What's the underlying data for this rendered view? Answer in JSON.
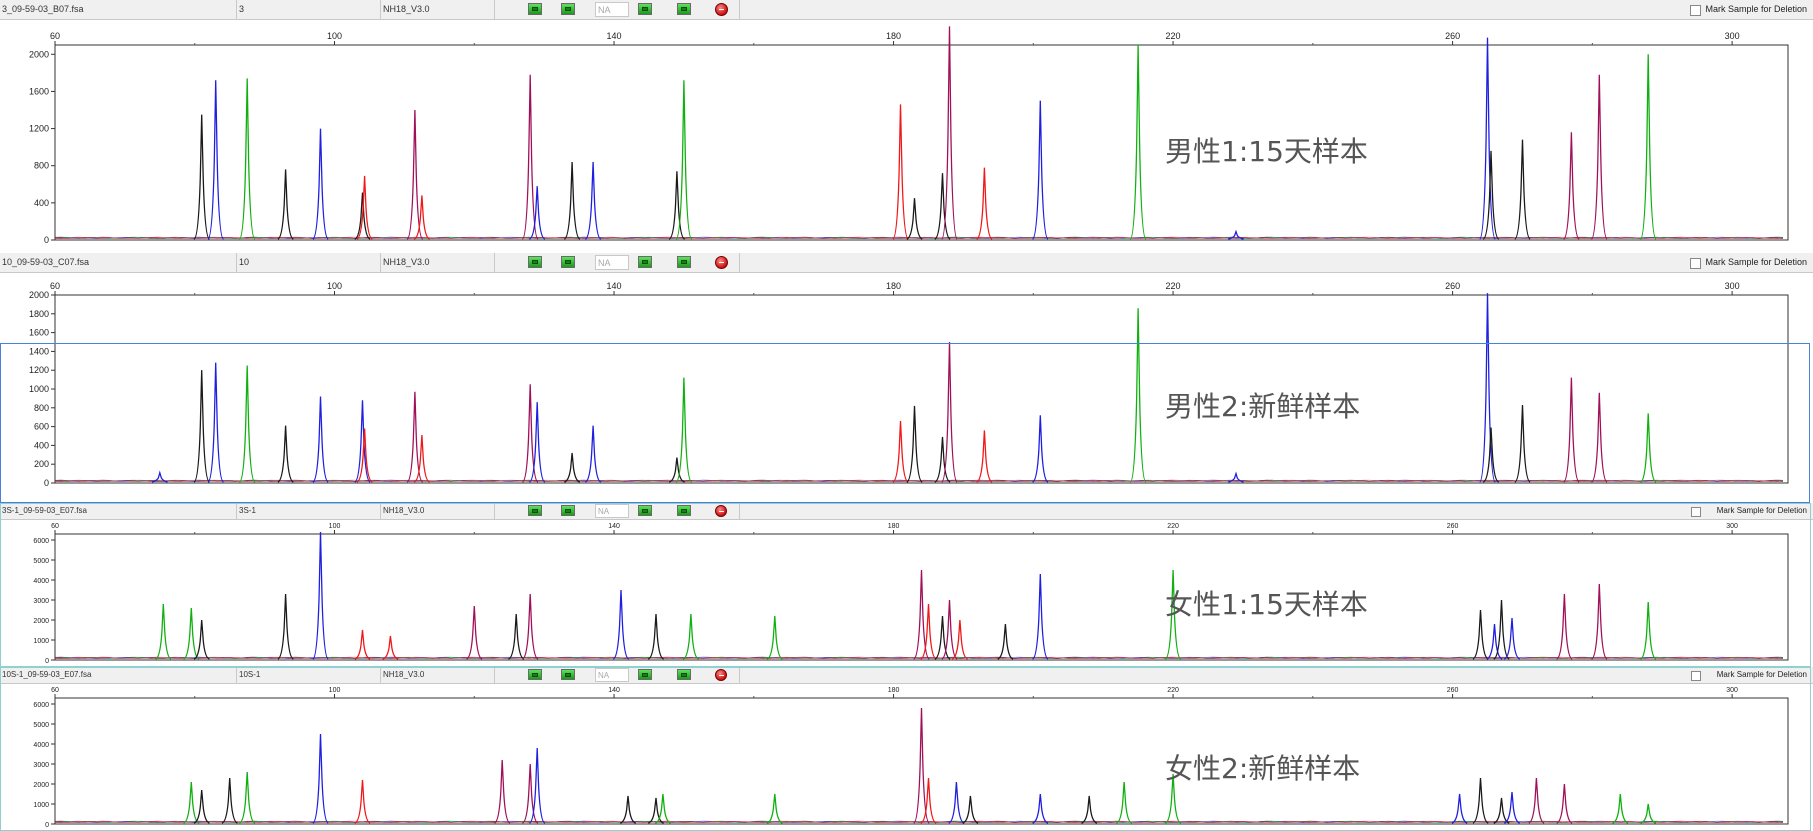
{
  "panels": [
    {
      "sample_file": "3_09-59-03_B07.fsa",
      "sample_name": "3",
      "panel_name": "NH18_V3.0",
      "na_text": "NA",
      "mark_label": "Mark Sample for Deletion",
      "overlay_label": "男性1:15天样本",
      "chart_data": {
        "type": "line",
        "x_ticks": [
          60,
          100,
          140,
          180,
          220,
          260,
          300
        ],
        "y_ticks": [
          0,
          400,
          800,
          1200,
          1600,
          2000
        ],
        "xlim": [
          60,
          308
        ],
        "ylim": [
          0,
          2100
        ],
        "peaks": [
          {
            "color": "black",
            "x": 81,
            "y": 1350
          },
          {
            "color": "blue",
            "x": 83,
            "y": 1720
          },
          {
            "color": "green",
            "x": 87.5,
            "y": 1740
          },
          {
            "color": "black",
            "x": 93,
            "y": 760
          },
          {
            "color": "blue",
            "x": 98,
            "y": 1200
          },
          {
            "color": "black",
            "x": 104,
            "y": 510
          },
          {
            "color": "red",
            "x": 104.3,
            "y": 690
          },
          {
            "color": "purple",
            "x": 111.5,
            "y": 1400
          },
          {
            "color": "red",
            "x": 112.5,
            "y": 480
          },
          {
            "color": "purple",
            "x": 128,
            "y": 1780
          },
          {
            "color": "blue",
            "x": 129,
            "y": 580
          },
          {
            "color": "black",
            "x": 134,
            "y": 840
          },
          {
            "color": "blue",
            "x": 137,
            "y": 840
          },
          {
            "color": "black",
            "x": 149,
            "y": 740
          },
          {
            "color": "green",
            "x": 150,
            "y": 1720
          },
          {
            "color": "red",
            "x": 181,
            "y": 1460
          },
          {
            "color": "black",
            "x": 183,
            "y": 450
          },
          {
            "color": "black",
            "x": 187,
            "y": 720
          },
          {
            "color": "purple",
            "x": 188,
            "y": 2300
          },
          {
            "color": "red",
            "x": 193,
            "y": 780
          },
          {
            "color": "blue",
            "x": 201,
            "y": 1500
          },
          {
            "color": "green",
            "x": 215,
            "y": 2100
          },
          {
            "color": "blue",
            "x": 229,
            "y": 90
          },
          {
            "color": "blue",
            "x": 265,
            "y": 2180
          },
          {
            "color": "black",
            "x": 265.5,
            "y": 960
          },
          {
            "color": "black",
            "x": 270,
            "y": 1080
          },
          {
            "color": "purple",
            "x": 277,
            "y": 1160
          },
          {
            "color": "purple",
            "x": 281,
            "y": 1780
          },
          {
            "color": "green",
            "x": 288,
            "y": 2000
          }
        ]
      }
    },
    {
      "sample_file": "10_09-59-03_C07.fsa",
      "sample_name": "10",
      "panel_name": "NH18_V3.0",
      "na_text": "NA",
      "mark_label": "Mark Sample for Deletion",
      "overlay_label": "男性2:新鲜样本",
      "chart_data": {
        "type": "line",
        "x_ticks": [
          60,
          100,
          140,
          180,
          220,
          260,
          300
        ],
        "y_ticks": [
          0,
          200,
          400,
          600,
          800,
          1000,
          1200,
          1400,
          1600,
          1800,
          2000
        ],
        "xlim": [
          60,
          308
        ],
        "ylim": [
          0,
          2000
        ],
        "peaks": [
          {
            "color": "blue",
            "x": 75,
            "y": 110
          },
          {
            "color": "black",
            "x": 81,
            "y": 1200
          },
          {
            "color": "blue",
            "x": 83,
            "y": 1280
          },
          {
            "color": "green",
            "x": 87.5,
            "y": 1250
          },
          {
            "color": "black",
            "x": 93,
            "y": 610
          },
          {
            "color": "blue",
            "x": 98,
            "y": 920
          },
          {
            "color": "blue",
            "x": 104,
            "y": 880
          },
          {
            "color": "red",
            "x": 104.3,
            "y": 580
          },
          {
            "color": "purple",
            "x": 111.5,
            "y": 970
          },
          {
            "color": "red",
            "x": 112.5,
            "y": 510
          },
          {
            "color": "purple",
            "x": 128,
            "y": 1050
          },
          {
            "color": "blue",
            "x": 129,
            "y": 860
          },
          {
            "color": "black",
            "x": 134,
            "y": 320
          },
          {
            "color": "blue",
            "x": 137,
            "y": 610
          },
          {
            "color": "black",
            "x": 149,
            "y": 270
          },
          {
            "color": "green",
            "x": 150,
            "y": 1120
          },
          {
            "color": "red",
            "x": 181,
            "y": 660
          },
          {
            "color": "black",
            "x": 183,
            "y": 820
          },
          {
            "color": "black",
            "x": 187,
            "y": 490
          },
          {
            "color": "purple",
            "x": 188,
            "y": 1500
          },
          {
            "color": "red",
            "x": 193,
            "y": 560
          },
          {
            "color": "blue",
            "x": 201,
            "y": 720
          },
          {
            "color": "green",
            "x": 215,
            "y": 1860
          },
          {
            "color": "blue",
            "x": 229,
            "y": 100
          },
          {
            "color": "blue",
            "x": 265,
            "y": 2020
          },
          {
            "color": "black",
            "x": 265.5,
            "y": 590
          },
          {
            "color": "black",
            "x": 270,
            "y": 830
          },
          {
            "color": "purple",
            "x": 277,
            "y": 1120
          },
          {
            "color": "purple",
            "x": 281,
            "y": 960
          },
          {
            "color": "green",
            "x": 288,
            "y": 740
          }
        ]
      }
    },
    {
      "sample_file": "3S-1_09-59-03_E07.fsa",
      "sample_name": "3S-1",
      "panel_name": "NH18_V3.0",
      "na_text": "NA",
      "mark_label": "Mark Sample for Deletion",
      "overlay_label": "女性1:15天样本",
      "chart_data": {
        "type": "line",
        "x_ticks": [
          60,
          100,
          140,
          180,
          220,
          260,
          300
        ],
        "y_ticks": [
          0,
          1000,
          2000,
          3000,
          4000,
          5000,
          6000
        ],
        "xlim": [
          60,
          308
        ],
        "ylim": [
          0,
          6300
        ],
        "peaks": [
          {
            "color": "green",
            "x": 75.5,
            "y": 2800
          },
          {
            "color": "green",
            "x": 79.5,
            "y": 2600
          },
          {
            "color": "black",
            "x": 81,
            "y": 2000
          },
          {
            "color": "black",
            "x": 93,
            "y": 3300
          },
          {
            "color": "blue",
            "x": 98,
            "y": 6400
          },
          {
            "color": "red",
            "x": 104,
            "y": 1500
          },
          {
            "color": "red",
            "x": 108,
            "y": 1200
          },
          {
            "color": "purple",
            "x": 120,
            "y": 2700
          },
          {
            "color": "black",
            "x": 126,
            "y": 2300
          },
          {
            "color": "purple",
            "x": 128,
            "y": 3300
          },
          {
            "color": "blue",
            "x": 141,
            "y": 3500
          },
          {
            "color": "black",
            "x": 146,
            "y": 2300
          },
          {
            "color": "green",
            "x": 151,
            "y": 2300
          },
          {
            "color": "green",
            "x": 163,
            "y": 2200
          },
          {
            "color": "purple",
            "x": 184,
            "y": 4500
          },
          {
            "color": "red",
            "x": 185,
            "y": 2800
          },
          {
            "color": "black",
            "x": 187,
            "y": 2200
          },
          {
            "color": "purple",
            "x": 188,
            "y": 3000
          },
          {
            "color": "red",
            "x": 189.5,
            "y": 2000
          },
          {
            "color": "black",
            "x": 196,
            "y": 1800
          },
          {
            "color": "blue",
            "x": 201,
            "y": 4300
          },
          {
            "color": "green",
            "x": 220,
            "y": 4500
          },
          {
            "color": "black",
            "x": 264,
            "y": 2500
          },
          {
            "color": "blue",
            "x": 266,
            "y": 1800
          },
          {
            "color": "black",
            "x": 267,
            "y": 3000
          },
          {
            "color": "blue",
            "x": 268.5,
            "y": 2100
          },
          {
            "color": "purple",
            "x": 276,
            "y": 3300
          },
          {
            "color": "purple",
            "x": 281,
            "y": 3800
          },
          {
            "color": "green",
            "x": 288,
            "y": 2900
          }
        ]
      }
    },
    {
      "sample_file": "10S-1_09-59-03_E07.fsa",
      "sample_name": "10S-1",
      "panel_name": "NH18_V3.0",
      "na_text": "NA",
      "mark_label": "Mark Sample for Deletion",
      "overlay_label": "女性2:新鲜样本",
      "chart_data": {
        "type": "line",
        "x_ticks": [
          60,
          100,
          140,
          180,
          220,
          260,
          300
        ],
        "y_ticks": [
          0,
          1000,
          2000,
          3000,
          4000,
          5000,
          6000
        ],
        "xlim": [
          60,
          308
        ],
        "ylim": [
          0,
          6300
        ],
        "peaks": [
          {
            "color": "green",
            "x": 79.5,
            "y": 2100
          },
          {
            "color": "black",
            "x": 81,
            "y": 1700
          },
          {
            "color": "black",
            "x": 85,
            "y": 2300
          },
          {
            "color": "green",
            "x": 87.5,
            "y": 2600
          },
          {
            "color": "blue",
            "x": 98,
            "y": 4500
          },
          {
            "color": "red",
            "x": 104,
            "y": 2200
          },
          {
            "color": "purple",
            "x": 124,
            "y": 3200
          },
          {
            "color": "purple",
            "x": 128,
            "y": 3000
          },
          {
            "color": "blue",
            "x": 129,
            "y": 3800
          },
          {
            "color": "black",
            "x": 142,
            "y": 1400
          },
          {
            "color": "black",
            "x": 146,
            "y": 1300
          },
          {
            "color": "green",
            "x": 147,
            "y": 1500
          },
          {
            "color": "green",
            "x": 163,
            "y": 1500
          },
          {
            "color": "purple",
            "x": 184,
            "y": 5800
          },
          {
            "color": "red",
            "x": 185,
            "y": 2300
          },
          {
            "color": "blue",
            "x": 189,
            "y": 2100
          },
          {
            "color": "black",
            "x": 191,
            "y": 1400
          },
          {
            "color": "blue",
            "x": 201,
            "y": 1500
          },
          {
            "color": "black",
            "x": 208,
            "y": 1400
          },
          {
            "color": "green",
            "x": 213,
            "y": 2100
          },
          {
            "color": "green",
            "x": 220,
            "y": 2500
          },
          {
            "color": "blue",
            "x": 261,
            "y": 1500
          },
          {
            "color": "black",
            "x": 264,
            "y": 2300
          },
          {
            "color": "black",
            "x": 267,
            "y": 1300
          },
          {
            "color": "blue",
            "x": 268.5,
            "y": 1600
          },
          {
            "color": "purple",
            "x": 272,
            "y": 2300
          },
          {
            "color": "purple",
            "x": 276,
            "y": 2000
          },
          {
            "color": "green",
            "x": 284,
            "y": 1500
          },
          {
            "color": "green",
            "x": 288,
            "y": 1000
          }
        ]
      }
    }
  ],
  "colors": {
    "black": "#1a1a1a",
    "blue": "#1f1fe0",
    "green": "#10b010",
    "red": "#f01818",
    "purple": "#a0105a",
    "header_bg": "#f0f0f0",
    "selection": "#4a7fe0"
  },
  "icons": [
    "green-square-icon",
    "stop-icon"
  ]
}
